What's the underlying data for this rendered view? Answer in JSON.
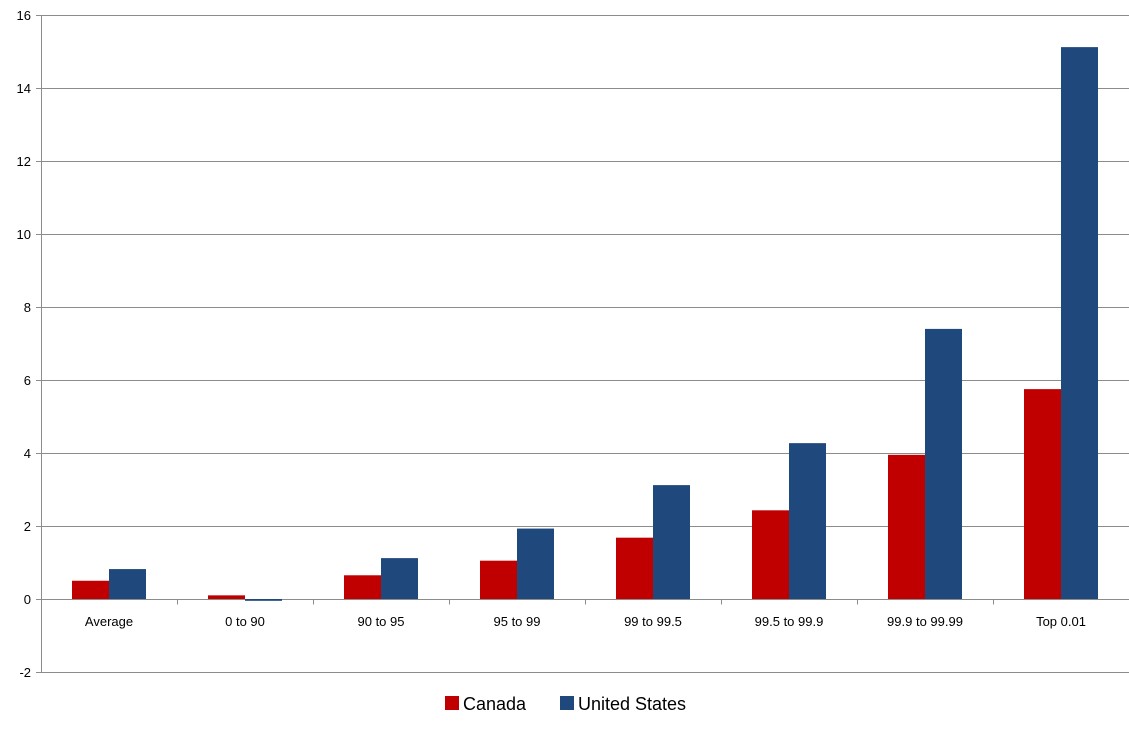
{
  "chart_data": {
    "type": "bar",
    "categories": [
      "Average",
      "0 to 90",
      "90 to 95",
      "95 to 99",
      "99 to 99.5",
      "99.5 to 99.9",
      "99.9 to 99.99",
      "Top 0.01"
    ],
    "series": [
      {
        "name": "Canada",
        "color": "#c00000",
        "values": [
          0.5,
          0.1,
          0.65,
          1.05,
          1.68,
          2.43,
          3.95,
          5.75
        ]
      },
      {
        "name": "United States",
        "color": "#1f497d",
        "values": [
          0.82,
          -0.05,
          1.12,
          1.93,
          3.12,
          4.27,
          7.4,
          15.12
        ]
      }
    ],
    "ylim": [
      -2,
      16
    ],
    "yticks": [
      -2,
      0,
      2,
      4,
      6,
      8,
      10,
      12,
      14,
      16
    ],
    "title": "",
    "xlabel": "",
    "ylabel": "",
    "grid": true,
    "legend": "bottom-center",
    "gridline_color": "#8c8c8c",
    "axis_color": "#8c8c8c"
  }
}
